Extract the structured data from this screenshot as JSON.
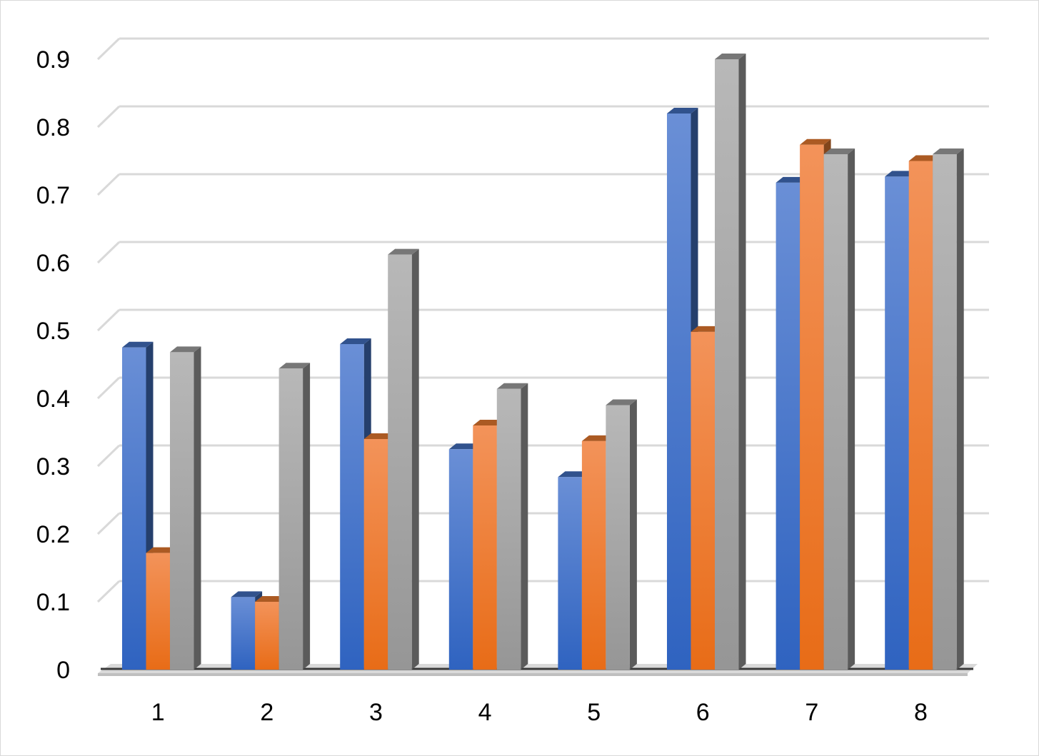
{
  "chart_data": {
    "type": "bar",
    "style": "3d-clustered-column",
    "title": "",
    "xlabel": "",
    "ylabel": "",
    "categories": [
      "1",
      "2",
      "3",
      "4",
      "5",
      "6",
      "7",
      "8"
    ],
    "series": [
      {
        "values": [
          0.475,
          0.107,
          0.48,
          0.325,
          0.284,
          0.82,
          0.718,
          0.727
        ],
        "color": "#4472c4"
      },
      {
        "values": [
          0.172,
          0.1,
          0.34,
          0.36,
          0.337,
          0.498,
          0.774,
          0.75
        ],
        "color": "#ed7d31"
      },
      {
        "values": [
          0.468,
          0.444,
          0.612,
          0.414,
          0.39,
          0.9,
          0.76,
          0.76
        ],
        "color": "#a5a5a5"
      }
    ],
    "ylim": [
      0,
      0.9
    ],
    "yticks": [
      "0",
      "0.1",
      "0.2",
      "0.3",
      "0.4",
      "0.5",
      "0.6",
      "0.7",
      "0.8",
      "0.9"
    ],
    "grid": true,
    "legend": "none"
  }
}
